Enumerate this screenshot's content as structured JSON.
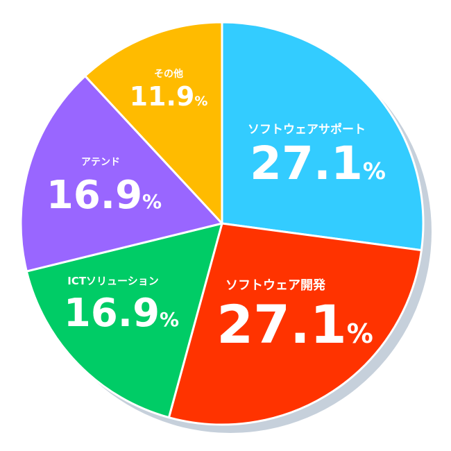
{
  "chart_data": {
    "type": "pie",
    "start": "top",
    "direction": "clockwise",
    "unit": "%",
    "slices": [
      {
        "label": "ソフトウェアサポート",
        "value": 27.1,
        "value_text": "27.1",
        "color": "#33ccff"
      },
      {
        "label": "ソフトウェア開発",
        "value": 27.1,
        "value_text": "27.1",
        "color": "#ff3300"
      },
      {
        "label": "ICTソリューション",
        "value": 16.9,
        "value_text": "16.9",
        "color": "#00cc66"
      },
      {
        "label": "アテンド",
        "value": 16.9,
        "value_text": "16.9",
        "color": "#9966ff"
      },
      {
        "label": "その他",
        "value": 11.9,
        "value_text": "11.9",
        "color": "#ffbb00"
      }
    ],
    "shadow_color": "#c6d0db",
    "separator_color": "#ffffff"
  }
}
